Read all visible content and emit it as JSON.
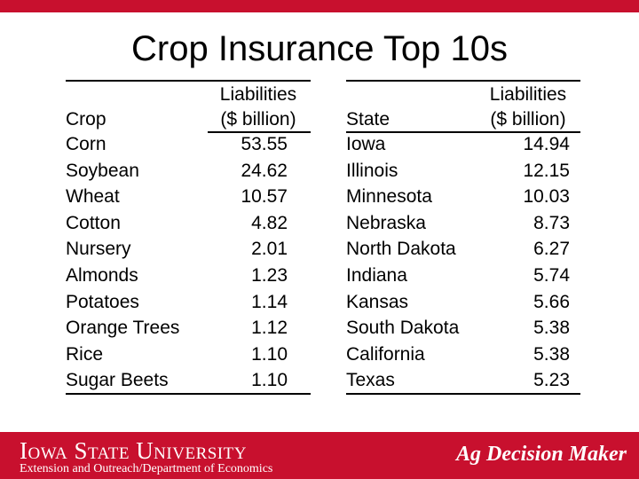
{
  "title": "Crop Insurance Top 10s",
  "crop_table": {
    "col1_header": "Crop",
    "col2_header_line1": "Liabilities",
    "col2_header_line2": "($ billion)",
    "rows": [
      {
        "name": "Corn",
        "value": "53.55"
      },
      {
        "name": "Soybean",
        "value": "24.62"
      },
      {
        "name": "Wheat",
        "value": "10.57"
      },
      {
        "name": "Cotton",
        "value": "4.82"
      },
      {
        "name": "Nursery",
        "value": "2.01"
      },
      {
        "name": "Almonds",
        "value": "1.23"
      },
      {
        "name": "Potatoes",
        "value": "1.14"
      },
      {
        "name": "Orange Trees",
        "value": "1.12"
      },
      {
        "name": "Rice",
        "value": "1.10"
      },
      {
        "name": "Sugar Beets",
        "value": "1.10"
      }
    ]
  },
  "state_table": {
    "col1_header": "State",
    "col2_header_line1": "Liabilities",
    "col2_header_line2": "($ billion)",
    "rows": [
      {
        "name": "Iowa",
        "value": "14.94"
      },
      {
        "name": "Illinois",
        "value": "12.15"
      },
      {
        "name": "Minnesota",
        "value": "10.03"
      },
      {
        "name": "Nebraska",
        "value": "8.73"
      },
      {
        "name": "North Dakota",
        "value": "6.27"
      },
      {
        "name": "Indiana",
        "value": "5.74"
      },
      {
        "name": "Kansas",
        "value": "5.66"
      },
      {
        "name": "South Dakota",
        "value": "5.38"
      },
      {
        "name": "California",
        "value": "5.38"
      },
      {
        "name": "Texas",
        "value": "5.23"
      }
    ]
  },
  "footer": {
    "university": "Iowa State University",
    "department": "Extension and Outreach/Department of Economics",
    "brand": "Ag Decision Maker"
  },
  "colors": {
    "accent": "#c8102e",
    "text": "#000000",
    "background": "#ffffff"
  }
}
